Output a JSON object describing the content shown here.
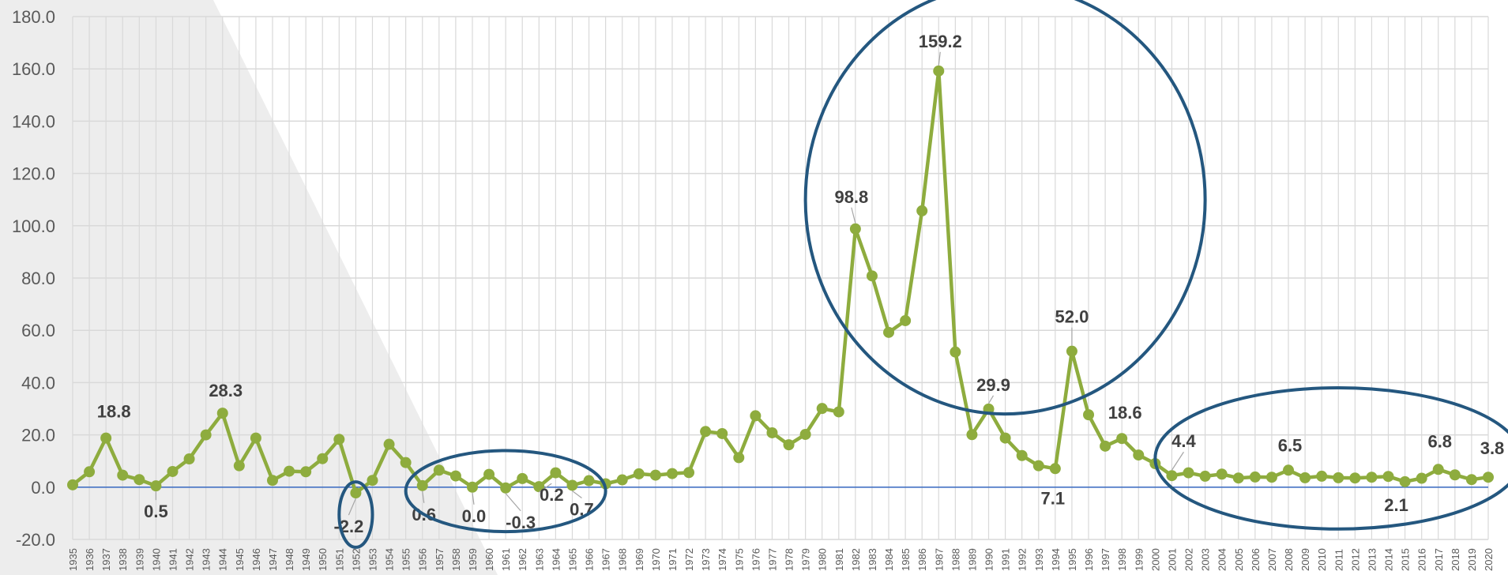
{
  "chart_data": {
    "type": "line",
    "title": "",
    "xlabel": "",
    "ylabel": "",
    "ylim": [
      -20,
      180
    ],
    "yticks": [
      "-20.0",
      "0.0",
      "20.0",
      "40.0",
      "60.0",
      "80.0",
      "100.0",
      "120.0",
      "140.0",
      "160.0",
      "180.0"
    ],
    "grid": true,
    "legend": "none",
    "colors": {
      "line": "#8EAC3E",
      "grid": "#D9D9D9",
      "zero_line": "#4472C4",
      "highlight": "#24577F",
      "shade": "#EDEDED",
      "label": "#404040",
      "tick": "#595959"
    },
    "x": [
      1935,
      1936,
      1937,
      1938,
      1939,
      1940,
      1941,
      1942,
      1943,
      1944,
      1945,
      1946,
      1947,
      1948,
      1949,
      1950,
      1951,
      1952,
      1953,
      1954,
      1955,
      1956,
      1957,
      1958,
      1959,
      1960,
      1961,
      1962,
      1963,
      1964,
      1965,
      1966,
      1967,
      1968,
      1969,
      1970,
      1971,
      1972,
      1973,
      1974,
      1975,
      1976,
      1977,
      1978,
      1979,
      1980,
      1981,
      1982,
      1983,
      1984,
      1985,
      1986,
      1987,
      1988,
      1989,
      1990,
      1991,
      1992,
      1993,
      1994,
      1995,
      1996,
      1997,
      1998,
      1999,
      2000,
      2001,
      2002,
      2003,
      2004,
      2005,
      2006,
      2007,
      2008,
      2009,
      2010,
      2011,
      2012,
      2013,
      2014,
      2015,
      2016,
      2017,
      2018,
      2019,
      2020
    ],
    "x_labels": [
      "1935",
      "1936",
      "1937",
      "1938",
      "1939",
      "1940",
      "1941",
      "1942",
      "1943",
      "1944",
      "1945",
      "1946",
      "1947",
      "1948",
      "1949",
      "1950",
      "1951",
      "1952",
      "1953",
      "1954",
      "1955",
      "1956",
      "1957",
      "1958",
      "1959",
      "1960",
      "1961",
      "1962",
      "1963",
      "1964",
      "1965",
      "1966",
      "1967",
      "1968",
      "1969",
      "1970",
      "1971",
      "1972",
      "1973",
      "1974",
      "1975",
      "1976",
      "1977",
      "1978",
      "1979",
      "1980",
      "1981",
      "1982",
      "1983",
      "1984",
      "1985",
      "1986",
      "1987",
      "1988",
      "1989",
      "1990",
      "1991",
      "1992",
      "1993",
      "1994",
      "1995",
      "1996",
      "1997",
      "1998",
      "1999",
      "2000",
      "2001",
      "2002",
      "2003",
      "2004",
      "2005",
      "2006",
      "2007",
      "2008",
      "2009",
      "2010",
      "2011",
      "2012",
      "2013",
      "2014",
      "2015",
      "2016",
      "2017",
      "2018",
      "2019",
      "2020"
    ],
    "series": [
      {
        "name": "",
        "values": [
          0.9,
          5.9,
          18.8,
          4.6,
          2.9,
          0.5,
          6.0,
          10.8,
          20.0,
          28.3,
          8.2,
          18.8,
          2.6,
          6.1,
          5.9,
          10.9,
          18.3,
          -2.2,
          2.6,
          16.4,
          9.4,
          0.6,
          6.5,
          4.3,
          0.0,
          4.9,
          -0.3,
          3.3,
          0.2,
          5.5,
          0.7,
          2.5,
          1.3,
          2.8,
          5.1,
          4.6,
          5.2,
          5.6,
          21.3,
          20.5,
          11.3,
          27.3,
          20.8,
          16.2,
          20.2,
          30.1,
          28.8,
          98.8,
          80.8,
          59.2,
          63.7,
          105.7,
          159.2,
          51.7,
          20.1,
          29.9,
          18.8,
          12.1,
          8.2,
          7.1,
          52.0,
          27.7,
          15.7,
          18.6,
          12.3,
          9.0,
          4.4,
          5.5,
          4.2,
          5.0,
          3.5,
          3.9,
          3.8,
          6.5,
          3.6,
          4.2,
          3.6,
          3.5,
          3.8,
          4.1,
          2.1,
          3.4,
          6.8,
          4.7,
          2.9,
          3.8
        ]
      }
    ],
    "data_labels": [
      {
        "x": 1937,
        "text": "18.8"
      },
      {
        "x": 1940,
        "text": "0.5"
      },
      {
        "x": 1944,
        "text": "28.3"
      },
      {
        "x": 1952,
        "text": "-2.2"
      },
      {
        "x": 1956,
        "text": "0.6"
      },
      {
        "x": 1959,
        "text": "0.0"
      },
      {
        "x": 1961,
        "text": "-0.3"
      },
      {
        "x": 1963,
        "text": "0.2"
      },
      {
        "x": 1965,
        "text": "0.7"
      },
      {
        "x": 1982,
        "text": "98.8"
      },
      {
        "x": 1987,
        "text": "159.2"
      },
      {
        "x": 1990,
        "text": "29.9"
      },
      {
        "x": 1994,
        "text": "7.1"
      },
      {
        "x": 1995,
        "text": "52.0"
      },
      {
        "x": 1998,
        "text": "18.6"
      },
      {
        "x": 2001,
        "text": "4.4"
      },
      {
        "x": 2008,
        "text": "6.5"
      },
      {
        "x": 2015,
        "text": "2.1"
      },
      {
        "x": 2017,
        "text": "6.8"
      },
      {
        "x": 2020,
        "text": "3.8"
      }
    ],
    "highlight_ellipses": [
      {
        "x_from": 1951,
        "x_to": 1953,
        "y_from": -23,
        "y_to": 2
      },
      {
        "x_from": 1955,
        "x_to": 1967,
        "y_from": -17,
        "y_to": 14
      },
      {
        "x_from": 1979,
        "x_to": 2003,
        "y_from": 28,
        "y_to": 192
      },
      {
        "x_from": 2000,
        "x_to": 2022,
        "y_from": -16,
        "y_to": 38
      }
    ]
  }
}
